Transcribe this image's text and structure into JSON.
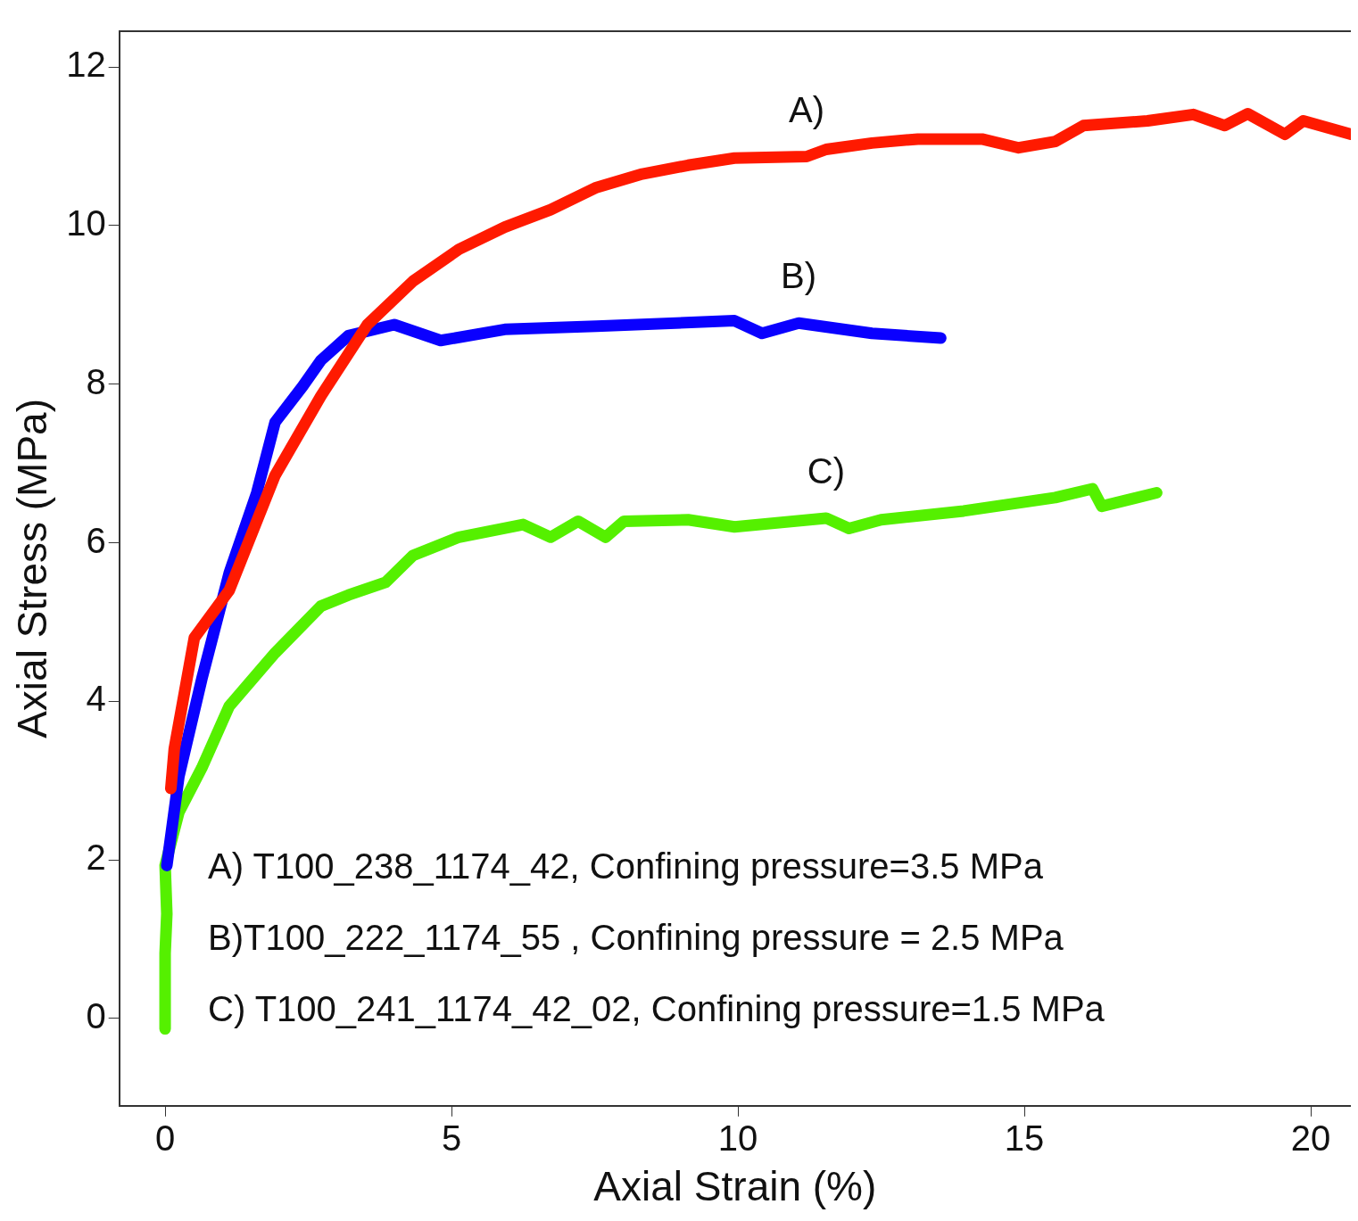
{
  "chart_data": {
    "type": "line",
    "xlabel": "Axial Strain (%)",
    "ylabel": "Axial Stress (MPa)",
    "xlim": [
      -0.8,
      20.7
    ],
    "xticks": [
      0,
      5,
      10,
      15,
      20
    ],
    "ylim": [
      -1.1,
      12.45
    ],
    "yticks": [
      0,
      2,
      4,
      6,
      8,
      10,
      12
    ],
    "grid": false,
    "legend": false,
    "series": [
      {
        "name": "A)",
        "color": "#ff1a00",
        "x": [
          0.1,
          0.16,
          0.51,
          1.12,
          1.92,
          2.72,
          3.53,
          4.33,
          5.13,
          5.93,
          6.73,
          7.53,
          8.33,
          9.13,
          9.94,
          11.2,
          11.54,
          12.34,
          13.14,
          14.26,
          14.9,
          15.54,
          16.03,
          17.15,
          17.95,
          18.5,
          18.9,
          19.55,
          19.87,
          20.7
        ],
        "values": [
          2.9,
          3.4,
          4.8,
          5.4,
          6.85,
          7.85,
          8.75,
          9.3,
          9.7,
          9.98,
          10.2,
          10.48,
          10.65,
          10.76,
          10.85,
          10.87,
          10.96,
          11.04,
          11.09,
          11.09,
          10.98,
          11.06,
          11.26,
          11.32,
          11.4,
          11.26,
          11.41,
          11.15,
          11.32,
          11.15
        ]
      },
      {
        "name": "B)",
        "color": "#0a00ff",
        "x": [
          0.03,
          0.24,
          0.64,
          1.12,
          1.6,
          1.92,
          2.4,
          2.72,
          3.2,
          4.0,
          4.81,
          5.93,
          7.53,
          9.94,
          10.42,
          11.06,
          12.34,
          13.54
        ],
        "values": [
          1.93,
          3.05,
          4.28,
          5.62,
          6.63,
          7.52,
          7.97,
          8.3,
          8.61,
          8.75,
          8.55,
          8.69,
          8.73,
          8.8,
          8.64,
          8.77,
          8.64,
          8.58
        ]
      },
      {
        "name": "C)",
        "color": "#55f000",
        "x": [
          0,
          0,
          0.03,
          0,
          0.24,
          0.64,
          1.12,
          1.92,
          2.72,
          3.2,
          3.85,
          4.33,
          5.13,
          6.25,
          6.73,
          7.21,
          7.69,
          8.01,
          9.13,
          9.94,
          11.54,
          11.94,
          12.5,
          13.94,
          15.54,
          16.19,
          16.35,
          17.31
        ],
        "values": [
          -0.13,
          0.82,
          1.32,
          1.93,
          2.6,
          3.16,
          3.94,
          4.61,
          5.2,
          5.34,
          5.5,
          5.84,
          6.07,
          6.23,
          6.07,
          6.27,
          6.07,
          6.27,
          6.29,
          6.2,
          6.31,
          6.18,
          6.29,
          6.4,
          6.57,
          6.68,
          6.46,
          6.63
        ]
      }
    ],
    "annotations": [
      "A) T100_238_1174_42, Confining pressure=3.5 MPa",
      "B)T100_222_1174_55 , Confining pressure = 2.5 MPa",
      "C) T100_241_1174_42_02, Confining pressure=1.5 MPa"
    ]
  }
}
